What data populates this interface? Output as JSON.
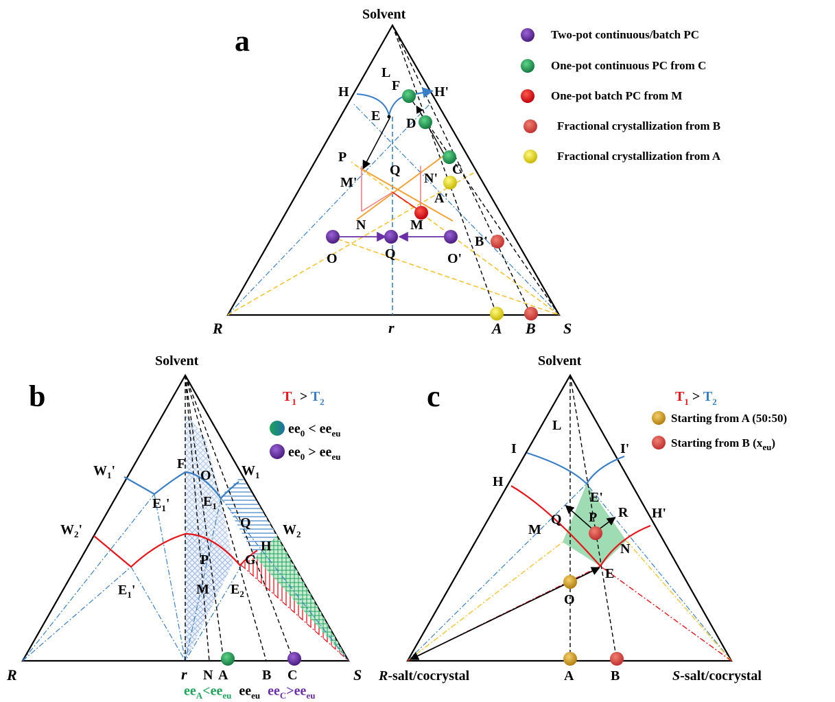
{
  "panels": {
    "a": {
      "letter": "a",
      "apex": "Solvent",
      "corner_left": "R",
      "corner_right": "S",
      "legend": [
        {
          "label": "Two-pot continuous/batch PC",
          "color": "#6a2fa8"
        },
        {
          "label": "One-pot continuous PC from C",
          "color": "#1fa35a"
        },
        {
          "label": "One-pot batch PC from M",
          "color": "#e8141a"
        },
        {
          "label": "Fractional crystallization from B",
          "color": "#e04848"
        },
        {
          "label": "Fractional crystallization from A",
          "color": "#e6e01a"
        }
      ],
      "points": {
        "L": "L",
        "F": "F",
        "H": "H",
        "H2": "H'",
        "E": "E",
        "D": "D",
        "P": "P",
        "Q_top": "Q",
        "M2": "M'",
        "N2": "N'",
        "C": "C",
        "A2": "A'",
        "N": "N",
        "M": "M",
        "O": "O",
        "Q": "Q",
        "O2": "O'",
        "B2": "B'",
        "r": "r",
        "A": "A",
        "B": "B"
      }
    },
    "b": {
      "letter": "b",
      "apex": "Solvent",
      "corner_left": "R",
      "corner_right": "S",
      "temp_t1": "T",
      "temp_t1_sub": "1",
      "temp_gt": " > ",
      "temp_t2": "T",
      "temp_t2_sub": "2",
      "legend": [
        {
          "a": "ee",
          "a_sub": "0",
          "op": " < ",
          "b": "ee",
          "b_sub": "eu",
          "color": "#1fa35a"
        },
        {
          "a": "ee",
          "a_sub": "0",
          "op": " > ",
          "b": "ee",
          "b_sub": "eu",
          "color": "#6a2fa8"
        }
      ],
      "points": {
        "W1p": "W",
        "W1p_sub": "1",
        "W1p_suf": "'",
        "W2p": "W",
        "W2p_sub": "2",
        "W2p_suf": "'",
        "W1": "W",
        "W1_sub": "1",
        "W2": "W",
        "W2_sub": "2",
        "F": "F",
        "O": "O",
        "E1p": "E",
        "E1p_sub": "1",
        "E1p_suf": "'",
        "E1": "E",
        "E1_sub": "1",
        "Q": "Q",
        "H": "H",
        "G": "G",
        "P": "P",
        "M": "M",
        "E2": "E",
        "E2_sub": "2",
        "E1pp": "E",
        "E1pp_sub": "1",
        "E1pp_suf": "'",
        "r": "r",
        "N": "N",
        "A": "A",
        "B": "B",
        "C": "C"
      },
      "bottom_caption": {
        "eeA": "ee",
        "eeA_sub": "A",
        "lt": "<",
        "eeEu1": "ee",
        "eeEu1_sub": "eu",
        "mid": "ee",
        "mid_sub": "eu",
        "eeC": "ee",
        "eeC_sub": "C",
        "gt": ">",
        "eeEu2": "ee",
        "eeEu2_sub": "eu"
      }
    },
    "c": {
      "letter": "c",
      "apex": "Solvent",
      "corner_left_it": "R",
      "corner_left_rest": "-salt/cocrystal",
      "corner_right_it": "S",
      "corner_right_rest": "-salt/cocrystal",
      "temp_t1": "T",
      "temp_t1_sub": "1",
      "temp_gt": " > ",
      "temp_t2": "T",
      "temp_t2_sub": "2",
      "legend": [
        {
          "label": "Starting from A (50:50)",
          "color": "#d9a520"
        },
        {
          "label": "Starting from B (x",
          "label_sub": "eu",
          "label_end": ")",
          "color": "#e04848"
        }
      ],
      "points": {
        "L": "L",
        "I": "I",
        "I2": "I'",
        "H": "H",
        "H2": "H'",
        "E2": "E'",
        "Q": "Q",
        "P": "P",
        "R": "R",
        "M": "M",
        "N": "N",
        "E": "E",
        "O": "O",
        "A": "A",
        "B": "B"
      }
    }
  },
  "colors": {
    "blue": "#3a7fc6",
    "red": "#e8141a",
    "orange": "#f2a33a",
    "yellow_dash": "#f4c430",
    "purple": "#6a2fa8",
    "green": "#1fa35a",
    "green_fill": "#7fcf9a",
    "pink": "#f08080"
  }
}
